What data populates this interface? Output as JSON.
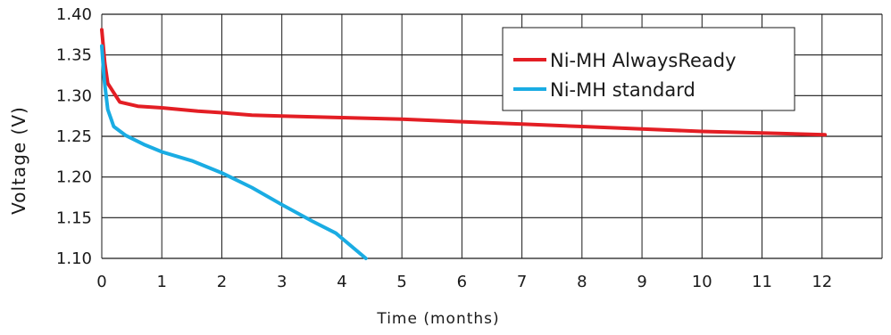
{
  "chart_data": {
    "type": "line",
    "title": "",
    "xlabel": "Time (months)",
    "ylabel": "Voltage (V)",
    "xlim": [
      0,
      13
    ],
    "ylim": [
      1.1,
      1.4
    ],
    "xticks": [
      0,
      1,
      2,
      3,
      4,
      5,
      6,
      7,
      8,
      9,
      10,
      11,
      12
    ],
    "yticks": [
      1.1,
      1.15,
      1.2,
      1.25,
      1.3,
      1.35,
      1.4
    ],
    "ytick_labels": [
      "1.10",
      "1.15",
      "1.20",
      "1.25",
      "1.30",
      "1.35",
      "1.40"
    ],
    "grid": true,
    "legend_position": "top-right",
    "series": [
      {
        "name": "Ni-MH AlwaysReady",
        "color": "#e31e24",
        "x": [
          0,
          0.05,
          0.1,
          0.3,
          0.6,
          1.0,
          1.6,
          2.0,
          2.5,
          3.0,
          4.0,
          5.0,
          6.0,
          7.0,
          8.0,
          9.0,
          10.0,
          11.0,
          12.05
        ],
        "y": [
          1.381,
          1.34,
          1.315,
          1.292,
          1.287,
          1.285,
          1.281,
          1.279,
          1.276,
          1.275,
          1.273,
          1.271,
          1.268,
          1.265,
          1.262,
          1.259,
          1.256,
          1.254,
          1.252
        ]
      },
      {
        "name": "Ni-MH standard",
        "color": "#1aace3",
        "x": [
          0,
          0.04,
          0.1,
          0.2,
          0.4,
          0.7,
          1.0,
          1.5,
          2.0,
          2.5,
          3.0,
          3.5,
          3.9,
          4.4
        ],
        "y": [
          1.361,
          1.32,
          1.283,
          1.262,
          1.251,
          1.24,
          1.231,
          1.22,
          1.205,
          1.187,
          1.166,
          1.146,
          1.131,
          1.1
        ]
      }
    ]
  }
}
